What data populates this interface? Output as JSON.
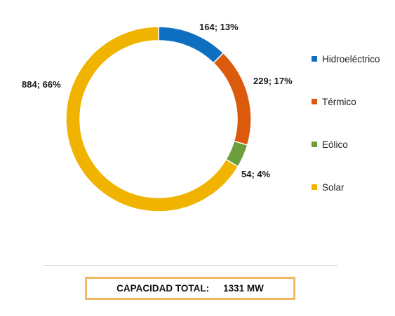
{
  "chart_data": {
    "type": "pie",
    "subtype": "donut",
    "categories": [
      "Hidroeléctrico",
      "Térmico",
      "Eólico",
      "Solar"
    ],
    "values": [
      164,
      229,
      54,
      884
    ],
    "percentages": [
      13,
      17,
      4,
      66
    ],
    "data_labels": [
      "164; 13%",
      "229; 17%",
      "54; 4%",
      "884; 66%"
    ],
    "colors": [
      "#0e6fc1",
      "#db5a0c",
      "#6b9e3d",
      "#f0b400"
    ],
    "legend_position": "right"
  },
  "legend": {
    "items": [
      {
        "label": "Hidroeléctrico",
        "color": "#0e6fc1"
      },
      {
        "label": "Térmico",
        "color": "#db5a0c"
      },
      {
        "label": "Eólico",
        "color": "#6b9e3d"
      },
      {
        "label": "Solar",
        "color": "#f0b400"
      }
    ]
  },
  "total": {
    "label": "CAPACIDAD TOTAL:",
    "value": "1331 MW",
    "border_color": "#f0b966"
  }
}
